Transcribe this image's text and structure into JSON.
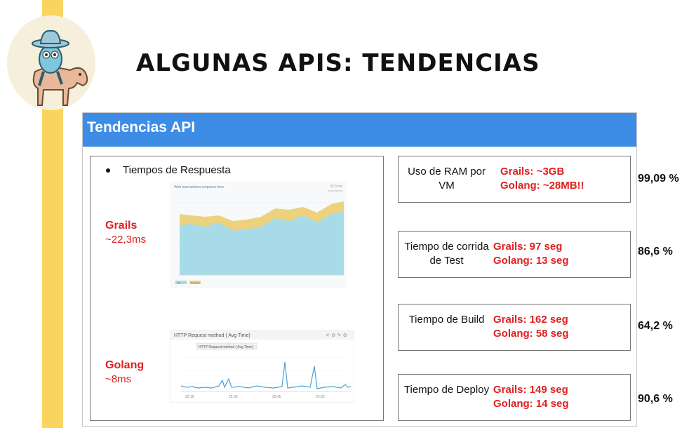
{
  "page": {
    "title": "ALGUNAS APIS: TENDENCIAS"
  },
  "slide": {
    "header": "Tendencias API",
    "bullet": "Tiempos de Respuesta",
    "grails": {
      "name": "Grails",
      "value": "~22,3ms"
    },
    "golang": {
      "name": "Golang",
      "value": "~8ms"
    },
    "top_chart": {
      "title": "Web transactions response time",
      "corner_value": "22.3 ms",
      "corner_sub": "avg latency",
      "legend": [
        "API",
        "Database"
      ]
    },
    "bottom_chart": {
      "title": "HTTP Request method ( Avg Time)",
      "legend": "HTTP Request method ( Avg Time)",
      "x_ticks": [
        "22:15",
        "22:30",
        "22:45",
        "23:00"
      ]
    }
  },
  "metrics": [
    {
      "label": "Uso de RAM por VM",
      "grails": "Grails: ~3GB",
      "golang": "Golang: ~28MB!!",
      "percent": "99,09 %"
    },
    {
      "label": "Tiempo de corrida de Test",
      "grails": "Grails: 97 seg",
      "golang": "Golang: 13 seg",
      "percent": "86,6 %"
    },
    {
      "label": "Tiempo de Build",
      "grails": "Grails: 162 seg",
      "golang": "Golang: 58 seg",
      "percent": "64,2 %"
    },
    {
      "label": "Tiempo de Deploy",
      "grails": "Grails: 149 seg",
      "golang": "Golang: 14 seg",
      "percent": "90,6 %"
    }
  ],
  "colors": {
    "header_blue": "#3d8ce6",
    "accent_red": "#e02020",
    "stripe_yellow": "#f9d560",
    "area_blue": "#a8dbe8",
    "area_yellow": "#ecd27e"
  }
}
